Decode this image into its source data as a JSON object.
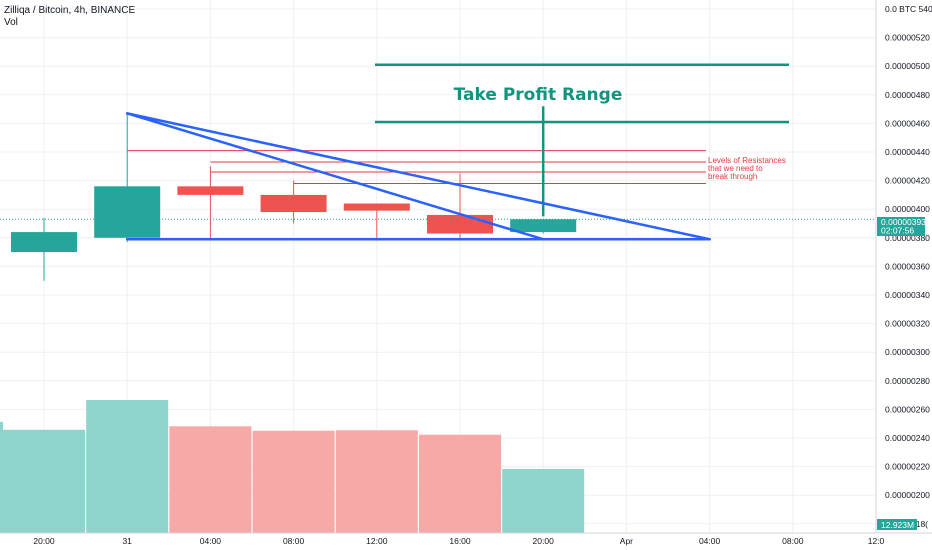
{
  "header": {
    "symbol": "Zilliqa / Bitcoin, 4h, BINANCE",
    "volume_label": "Vol"
  },
  "annotations": {
    "take_profit": "Take Profit Range",
    "resistance_lines": [
      "Levels of Resistances",
      "that we need to",
      "break through"
    ]
  },
  "price_badge": {
    "price": "0.00000393",
    "countdown": "02:07:56"
  },
  "volume_badge": "12.923M",
  "colors": {
    "up": "#26a69a",
    "down": "#ef5350",
    "vol_up": "#8fd3cd",
    "vol_down": "#f6a9a7",
    "trend": "#2962ff",
    "take_profit": "#12957f",
    "resistance": "#e53945",
    "grid": "#eef0f3",
    "axis_text": "#131722"
  },
  "chart_data": {
    "type": "candlestick",
    "title": "Zilliqa / Bitcoin, 4h, BINANCE",
    "y_axis": {
      "unit": "BTC",
      "ticks": [
        "0.0 BTC 540",
        "0.00000520",
        "0.00000500",
        "0.00000480",
        "0.00000460",
        "0.00000440",
        "0.00000420",
        "0.00000400",
        "0.00000380",
        "0.00000360",
        "0.00000340",
        "0.00000320",
        "0.00000300",
        "0.00000280",
        "0.00000260",
        "0.00000240",
        "0.00000220",
        "0.00000200",
        "0.0000018("
      ],
      "tick_values": [
        5.4e-06,
        5.2e-06,
        5e-06,
        4.8e-06,
        4.6e-06,
        4.4e-06,
        4.2e-06,
        4e-06,
        3.8e-06,
        3.6e-06,
        3.4e-06,
        3.2e-06,
        3e-06,
        2.8e-06,
        2.6e-06,
        2.4e-06,
        2.2e-06,
        2e-06,
        1.8e-06
      ]
    },
    "x_axis": {
      "labels": [
        "20:00",
        "31",
        "04:00",
        "08:00",
        "12:00",
        "16:00",
        "20:00",
        "Apr",
        "04:00",
        "08:00",
        "12:0"
      ],
      "label_index": [
        0,
        1,
        2,
        3,
        4,
        5,
        6,
        7,
        8,
        9,
        10
      ]
    },
    "candles": [
      {
        "open": 3.7e-06,
        "high": 3.94e-06,
        "low": 3.5e-06,
        "close": 3.84e-06
      },
      {
        "open": 3.8e-06,
        "high": 4.67e-06,
        "low": 3.77e-06,
        "close": 4.16e-06
      },
      {
        "open": 4.16e-06,
        "high": 4.3e-06,
        "low": 3.78e-06,
        "close": 4.1e-06
      },
      {
        "open": 4.1e-06,
        "high": 4.2e-06,
        "low": 3.9e-06,
        "close": 3.98e-06
      },
      {
        "open": 4.04e-06,
        "high": 4.04e-06,
        "low": 3.78e-06,
        "close": 3.99e-06
      },
      {
        "open": 3.96e-06,
        "high": 4.25e-06,
        "low": 3.78e-06,
        "close": 3.83e-06
      },
      {
        "open": 3.84e-06,
        "high": 3.93e-06,
        "low": 3.83e-06,
        "close": 3.93e-06
      }
    ],
    "volume": [
      20.8,
      26.8,
      21.5,
      20.6,
      20.7,
      19.8,
      12.9
    ],
    "volume_unit": "M",
    "trendlines": [
      {
        "from": {
          "i": 1,
          "v": 4.67e-06
        },
        "to": {
          "i": 8,
          "v": 3.79e-06
        }
      },
      {
        "from": {
          "i": 1,
          "v": 4.67e-06
        },
        "to": {
          "i": 6,
          "v": 3.79e-06
        }
      },
      {
        "from": {
          "i": 1,
          "v": 3.79e-06
        },
        "to": {
          "i": 8,
          "v": 3.79e-06
        }
      }
    ],
    "resistance_levels": [
      {
        "start": 1,
        "value": 4.41e-06
      },
      {
        "start": 2,
        "value": 4.33e-06
      },
      {
        "start": 2,
        "value": 4.26e-06
      },
      {
        "start": 3,
        "value": 4.18e-06
      }
    ],
    "take_profit_levels": [
      5.01e-06,
      4.61e-06
    ],
    "take_profit_arrow": {
      "i": 6,
      "from": 4.72e-06,
      "to": 3.95e-06
    },
    "last_price": 3.93e-06
  }
}
